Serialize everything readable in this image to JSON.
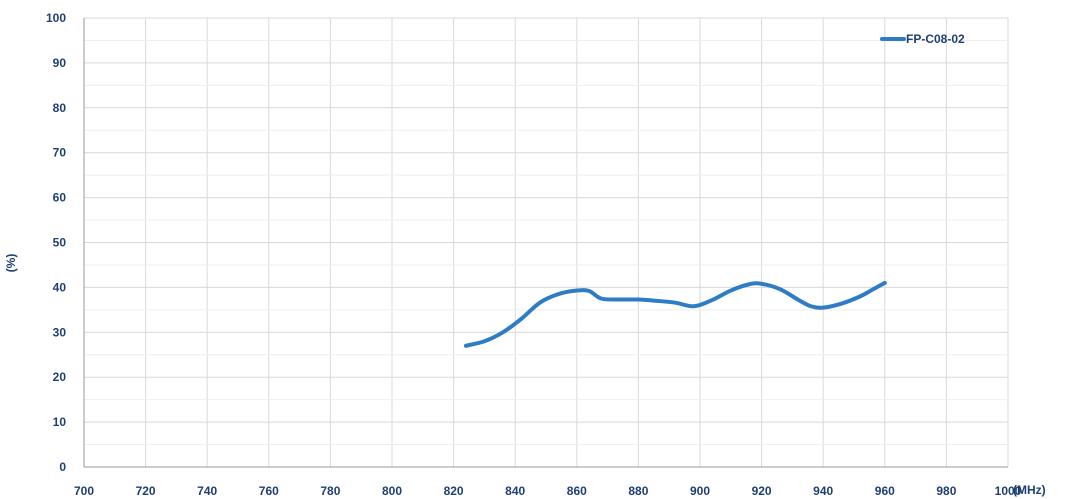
{
  "chart_data": {
    "type": "line",
    "title": "",
    "xlabel": "(MHz)",
    "ylabel": "(%)",
    "xlim": [
      700,
      1000
    ],
    "ylim": [
      0,
      100
    ],
    "x_ticks": [
      700,
      720,
      740,
      760,
      780,
      800,
      820,
      840,
      860,
      880,
      900,
      920,
      940,
      960,
      980,
      1000
    ],
    "y_ticks": [
      0,
      10,
      20,
      30,
      40,
      50,
      60,
      70,
      80,
      90,
      100
    ],
    "grid": true,
    "legend_position": "top-right",
    "series": [
      {
        "name": "FP-C08-02",
        "color": "#2d7cc4",
        "points": [
          {
            "x": 824,
            "y": 27
          },
          {
            "x": 830,
            "y": 28
          },
          {
            "x": 836,
            "y": 30
          },
          {
            "x": 842,
            "y": 33
          },
          {
            "x": 848,
            "y": 36.6
          },
          {
            "x": 854,
            "y": 38.5
          },
          {
            "x": 860,
            "y": 39.3
          },
          {
            "x": 864,
            "y": 39.2
          },
          {
            "x": 868,
            "y": 37.5
          },
          {
            "x": 874,
            "y": 37.3
          },
          {
            "x": 880,
            "y": 37.3
          },
          {
            "x": 886,
            "y": 37
          },
          {
            "x": 892,
            "y": 36.6
          },
          {
            "x": 898,
            "y": 35.8
          },
          {
            "x": 904,
            "y": 37.2
          },
          {
            "x": 910,
            "y": 39.3
          },
          {
            "x": 916,
            "y": 40.7
          },
          {
            "x": 920,
            "y": 40.8
          },
          {
            "x": 926,
            "y": 39.6
          },
          {
            "x": 932,
            "y": 37.2
          },
          {
            "x": 936,
            "y": 35.8
          },
          {
            "x": 940,
            "y": 35.5
          },
          {
            "x": 946,
            "y": 36.4
          },
          {
            "x": 952,
            "y": 38
          },
          {
            "x": 956,
            "y": 39.5
          },
          {
            "x": 960,
            "y": 41
          }
        ]
      }
    ]
  }
}
